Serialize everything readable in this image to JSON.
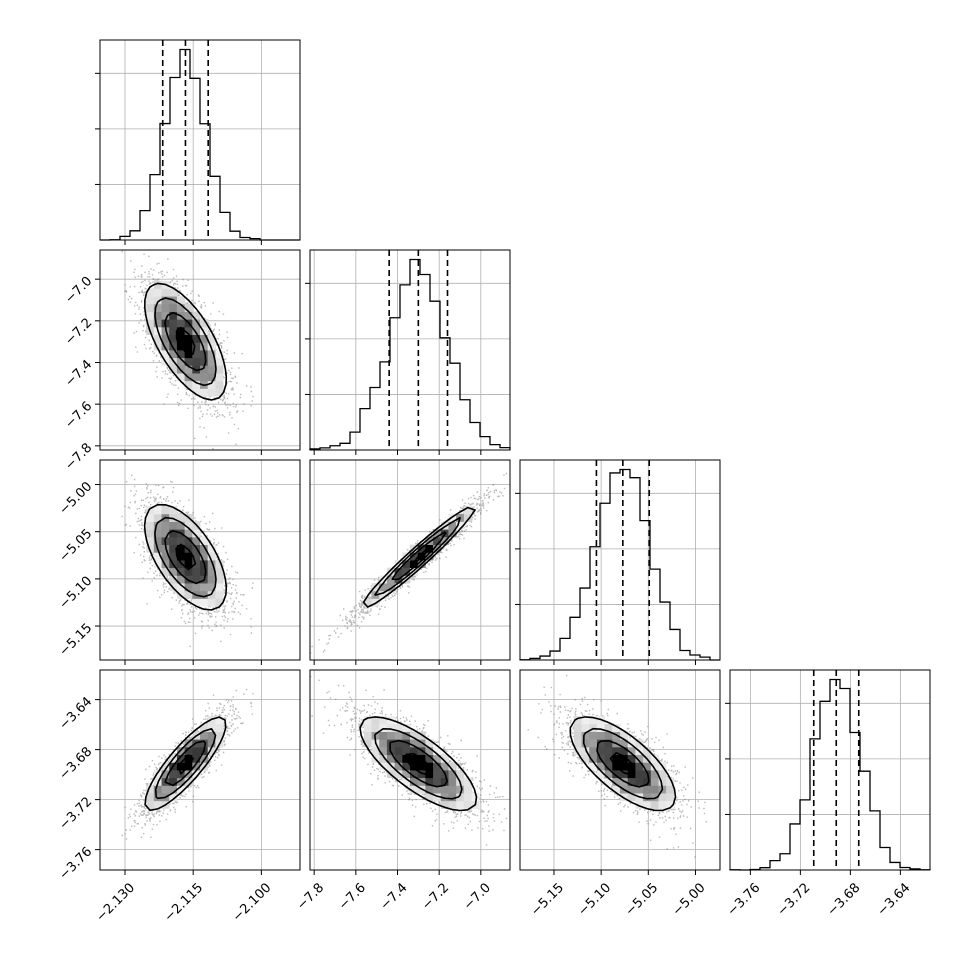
{
  "chart_data": {
    "type": "corner",
    "grid": true,
    "parameters": [
      {
        "ticks": [
          -2.13,
          -2.115,
          -2.1
        ],
        "tick_labels": [
          "−2.130",
          "−2.115",
          "−2.100"
        ],
        "range": [
          -2.1355,
          -2.0915
        ],
        "mean": -2.1167,
        "sd": 0.0045,
        "quantiles": [
          -2.1217,
          -2.1167,
          -2.1117
        ]
      },
      {
        "ticks": [
          -7.8,
          -7.6,
          -7.4,
          -7.2,
          -7.0
        ],
        "tick_labels": [
          "−7.8",
          "−7.6",
          "−7.4",
          "−7.2",
          "−7.0"
        ],
        "range": [
          -7.82,
          -6.86
        ],
        "mean": -7.3,
        "sd": 0.14,
        "quantiles": [
          -7.44,
          -7.3,
          -7.16
        ]
      },
      {
        "ticks": [
          -5.15,
          -5.1,
          -5.05,
          -5.0
        ],
        "tick_labels": [
          "−5.15",
          "−5.10",
          "−5.05",
          "−5.00"
        ],
        "range": [
          -5.186,
          -4.974
        ],
        "mean": -5.077,
        "sd": 0.028,
        "quantiles": [
          -5.105,
          -5.077,
          -5.049
        ]
      },
      {
        "ticks": [
          -3.76,
          -3.72,
          -3.68,
          -3.64
        ],
        "tick_labels": [
          "−3.76",
          "−3.72",
          "−3.68",
          "−3.64"
        ],
        "range": [
          -3.7763,
          -3.6163
        ],
        "mean": -3.6913,
        "sd": 0.0188,
        "quantiles": [
          -3.7093,
          -3.6913,
          -3.6733
        ]
      }
    ],
    "correlations": [
      [
        1.0,
        -0.65,
        -0.6,
        0.85
      ],
      [
        -0.65,
        1.0,
        0.97,
        -0.75
      ],
      [
        -0.6,
        0.97,
        1.0,
        -0.7
      ],
      [
        0.85,
        -0.75,
        -0.7,
        1.0
      ]
    ],
    "histogram_bins": 20,
    "contour_levels": [
      0.5,
      1.0,
      1.5,
      2.0
    ],
    "colors": {
      "line": "#000000",
      "grid": "#b0b0b0",
      "points": "#7f7f7f",
      "background": "#ffffff"
    }
  }
}
